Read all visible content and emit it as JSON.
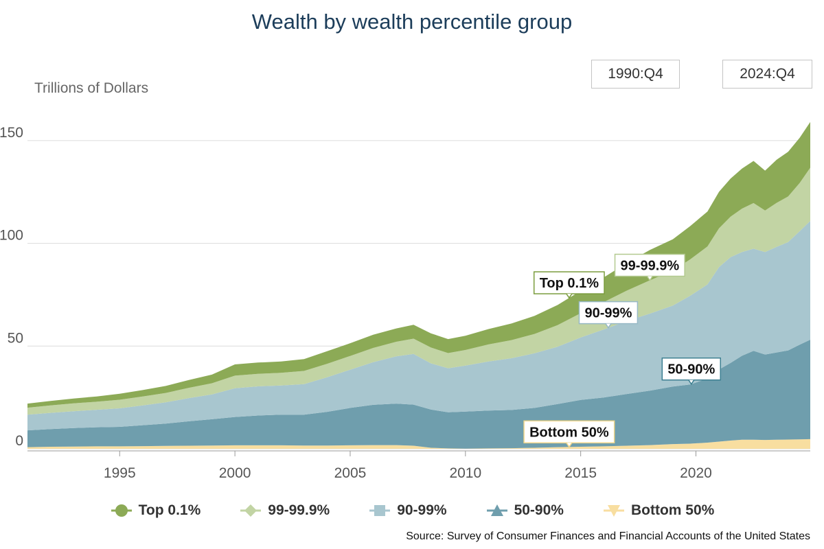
{
  "chart_data": {
    "type": "area",
    "stacked": true,
    "title": "Wealth by wealth percentile group",
    "ylabel": "Trillions of Dollars",
    "xlabel": "",
    "xlim": [
      1991.0,
      2024.96
    ],
    "ylim": [
      -1,
      165
    ],
    "x_ticks": [
      "1995",
      "2000",
      "2005",
      "2010",
      "2015",
      "2020"
    ],
    "y_ticks": [
      "0",
      "50",
      "100",
      "150"
    ],
    "grid": true,
    "legend_position": "bottom",
    "date_range": {
      "start": "1990:Q4",
      "end": "2024:Q4"
    },
    "source": "Source: Survey of Consumer Finances and Financial Accounts of the United States",
    "x": [
      1991,
      1992,
      1993,
      1994,
      1995,
      1996,
      1997,
      1998,
      1999,
      2000,
      2001,
      2002,
      2003,
      2004,
      2005,
      2006,
      2007,
      2007.75,
      2008.5,
      2009.25,
      2010,
      2011,
      2012,
      2013,
      2014,
      2015,
      2016,
      2017,
      2018,
      2019,
      2019.75,
      2020.5,
      2021,
      2021.5,
      2022,
      2022.5,
      2023,
      2023.5,
      2024,
      2024.5,
      2024.96
    ],
    "series": [
      {
        "name": "Bottom 50%",
        "color": "#f8dea0",
        "values": [
          0.8,
          1.0,
          1.1,
          1.2,
          1.2,
          1.3,
          1.4,
          1.5,
          1.6,
          1.7,
          1.7,
          1.7,
          1.6,
          1.6,
          1.7,
          1.8,
          1.8,
          1.5,
          0.5,
          0.2,
          0.1,
          0.2,
          0.3,
          0.5,
          0.8,
          1.0,
          1.2,
          1.5,
          1.8,
          2.3,
          2.5,
          3.0,
          3.5,
          4.0,
          4.4,
          4.4,
          4.3,
          4.4,
          4.5,
          4.6,
          4.7
        ]
      },
      {
        "name": "50-90%",
        "color": "#6f9ead",
        "values": [
          8.2,
          8.6,
          9.0,
          9.3,
          9.5,
          10.2,
          10.9,
          11.9,
          12.8,
          13.8,
          14.5,
          14.9,
          15.0,
          16.4,
          18.2,
          19.6,
          20.2,
          20.0,
          18.6,
          17.6,
          18.0,
          18.4,
          18.6,
          19.4,
          21.0,
          22.8,
          23.8,
          25.2,
          26.5,
          28.0,
          28.8,
          31.2,
          35.1,
          37.8,
          40.9,
          43.3,
          41.6,
          42.5,
          43.4,
          46.1,
          48.4
        ]
      },
      {
        "name": "90-99%",
        "color": "#a8c6cf",
        "values": [
          7.6,
          7.9,
          8.2,
          8.5,
          9.0,
          9.6,
          10.3,
          11.3,
          12.1,
          14.0,
          14.2,
          14.2,
          14.9,
          16.8,
          18.6,
          20.8,
          23.0,
          24.7,
          22.5,
          21.4,
          22.4,
          23.9,
          25.2,
          26.6,
          27.9,
          30.4,
          33.1,
          35.5,
          37.5,
          39.4,
          43.2,
          45.8,
          49.8,
          51.5,
          50.5,
          49.7,
          49.9,
          51.4,
          52.7,
          55.2,
          57.8
        ]
      },
      {
        "name": "99-99.9%",
        "color": "#c2d4a4",
        "values": [
          3.4,
          3.6,
          3.8,
          3.9,
          4.2,
          4.4,
          4.6,
          5.0,
          5.4,
          6.1,
          6.1,
          6.2,
          6.4,
          6.6,
          6.7,
          6.9,
          7.1,
          7.4,
          7.7,
          7.4,
          7.6,
          8.3,
          8.8,
          9.4,
          10.5,
          11.8,
          13.3,
          14.8,
          16.2,
          17.0,
          17.7,
          18.5,
          18.9,
          19.7,
          21.1,
          22.2,
          20.2,
          21.4,
          22.2,
          23.5,
          25.9
        ]
      },
      {
        "name": "Top 0.1%",
        "color": "#8caa56",
        "values": [
          2.0,
          2.2,
          2.4,
          2.6,
          2.9,
          3.1,
          3.4,
          3.8,
          4.2,
          5.5,
          5.5,
          5.5,
          5.8,
          6.1,
          6.2,
          6.4,
          6.5,
          6.8,
          6.9,
          6.8,
          6.9,
          7.5,
          8.1,
          8.8,
          9.8,
          10.9,
          12.0,
          13.5,
          14.8,
          15.3,
          16.2,
          17.0,
          17.8,
          18.5,
          19.5,
          20.5,
          19.4,
          21.0,
          21.8,
          22.0,
          22.3
        ]
      }
    ],
    "annotations": [
      {
        "label": "Top 0.1%",
        "series": "Top 0.1%",
        "x": 2014.5,
        "border": "#7a9c3c"
      },
      {
        "label": "99-99.9%",
        "series": "99-99.9%",
        "x": 2018.0,
        "border": "#b3c98f"
      },
      {
        "label": "90-99%",
        "series": "90-99%",
        "x": 2016.2,
        "border": "#97b9c6"
      },
      {
        "label": "50-90%",
        "series": "50-90%",
        "x": 2019.8,
        "border": "#3d7f91"
      },
      {
        "label": "Bottom 50%",
        "series": "Bottom 50%",
        "x": 2014.5,
        "border": "#f0d68a"
      }
    ]
  }
}
